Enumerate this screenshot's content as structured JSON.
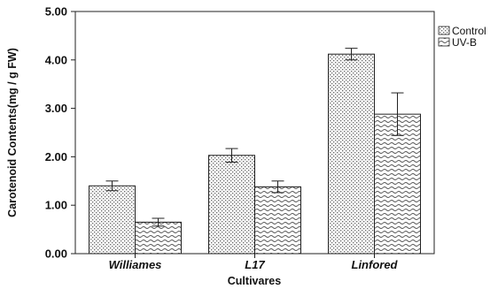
{
  "chart_data": {
    "type": "bar",
    "title": "",
    "xlabel": "Cultivares",
    "ylabel": "Carotenoid Contents(mg / g FW)",
    "categories": [
      "Williames",
      "L17",
      "Linfored"
    ],
    "series": [
      {
        "name": "Control",
        "values": [
          1.4,
          2.03,
          4.12
        ],
        "errors": [
          0.1,
          0.14,
          0.12
        ],
        "pattern": "dots"
      },
      {
        "name": "UV-B",
        "values": [
          0.65,
          1.38,
          2.88
        ],
        "errors": [
          0.08,
          0.12,
          0.44
        ],
        "pattern": "waves"
      }
    ],
    "ylim": [
      0,
      5
    ],
    "yticks": [
      "0.00",
      "1.00",
      "2.00",
      "3.00",
      "4.00",
      "5.00"
    ],
    "grid": false,
    "legend": "top-right",
    "colors": {
      "bar_fill": "#ffffff",
      "pattern": "#555555",
      "outline": "#222222"
    }
  }
}
